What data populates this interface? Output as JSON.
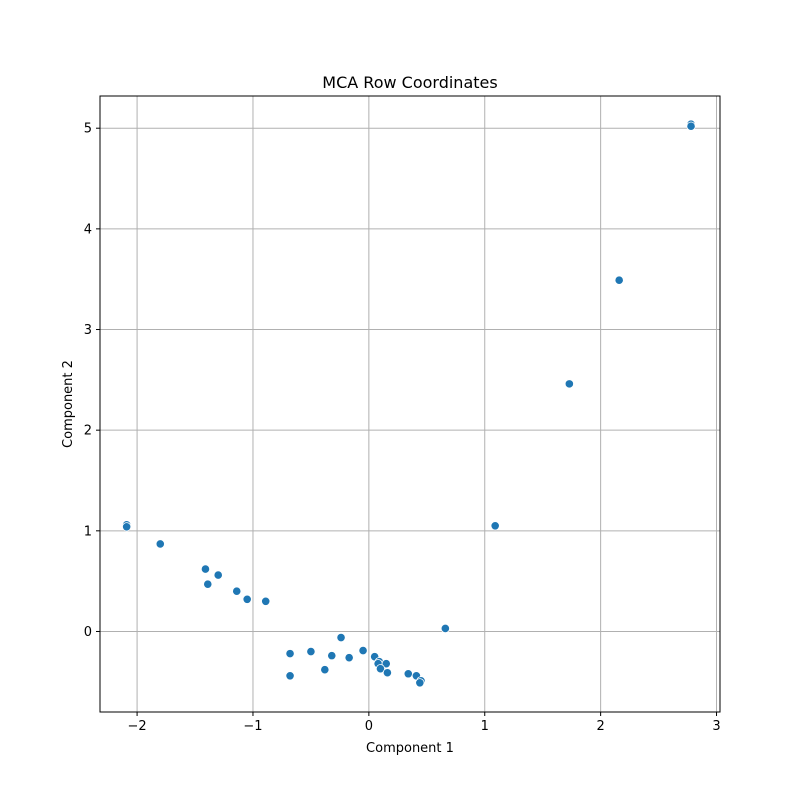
{
  "chart_data": {
    "type": "scatter",
    "title": "MCA Row Coordinates",
    "xlabel": "Component 1",
    "ylabel": "Component 2",
    "xlim": [
      -2.32,
      3.03
    ],
    "ylim": [
      -0.8,
      5.32
    ],
    "xticks": [
      -2,
      -1,
      0,
      1,
      2,
      3
    ],
    "xtick_labels": [
      "−2",
      "−1",
      "0",
      "1",
      "2",
      "3"
    ],
    "yticks": [
      0,
      1,
      2,
      3,
      4,
      5
    ],
    "ytick_labels": [
      "0",
      "1",
      "2",
      "3",
      "4",
      "5"
    ],
    "grid": true,
    "marker_color": "#1f77b4",
    "points": [
      {
        "x": 2.78,
        "y": 5.04
      },
      {
        "x": 2.78,
        "y": 5.02
      },
      {
        "x": 2.16,
        "y": 3.49
      },
      {
        "x": 1.73,
        "y": 2.46
      },
      {
        "x": 1.09,
        "y": 1.05
      },
      {
        "x": -2.09,
        "y": 1.06
      },
      {
        "x": -2.09,
        "y": 1.04
      },
      {
        "x": -1.8,
        "y": 0.87
      },
      {
        "x": -1.41,
        "y": 0.62
      },
      {
        "x": -1.3,
        "y": 0.56
      },
      {
        "x": -1.39,
        "y": 0.47
      },
      {
        "x": -1.14,
        "y": 0.4
      },
      {
        "x": -1.05,
        "y": 0.32
      },
      {
        "x": -0.89,
        "y": 0.3
      },
      {
        "x": 0.66,
        "y": 0.03
      },
      {
        "x": -0.24,
        "y": -0.06
      },
      {
        "x": -0.68,
        "y": -0.22
      },
      {
        "x": -0.5,
        "y": -0.2
      },
      {
        "x": -0.32,
        "y": -0.24
      },
      {
        "x": -0.17,
        "y": -0.26
      },
      {
        "x": -0.05,
        "y": -0.19
      },
      {
        "x": 0.05,
        "y": -0.25
      },
      {
        "x": 0.09,
        "y": -0.3
      },
      {
        "x": 0.08,
        "y": -0.32
      },
      {
        "x": 0.15,
        "y": -0.32
      },
      {
        "x": 0.1,
        "y": -0.37
      },
      {
        "x": 0.16,
        "y": -0.41
      },
      {
        "x": -0.38,
        "y": -0.38
      },
      {
        "x": -0.68,
        "y": -0.44
      },
      {
        "x": 0.34,
        "y": -0.42
      },
      {
        "x": 0.41,
        "y": -0.44
      },
      {
        "x": 0.45,
        "y": -0.49
      },
      {
        "x": 0.44,
        "y": -0.51
      }
    ]
  }
}
